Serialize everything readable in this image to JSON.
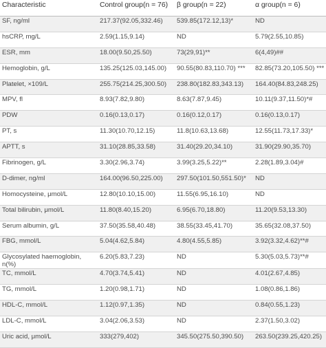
{
  "headers": [
    "Characteristic",
    "Control group(n = 76)",
    "β group(n = 22)",
    "α group(n = 6)"
  ],
  "rows": [
    [
      "SF, ng/ml",
      "217.37(92.05,332.46)",
      "539.85(172.12,13)*",
      "ND"
    ],
    [
      "hsCRP, mg/L",
      "2.59(1.15,9.14)",
      "ND",
      "5.79(2.55,10.85)"
    ],
    [
      "ESR, mm",
      "18.00(9.50,25.50)",
      "73(29,91)**",
      "6(4,49)##"
    ],
    [
      "Hemoglobin, g/L",
      "135.25(125.03,145.00)",
      "90.55(80.83,110.70) ***",
      "82.85(73.20,105.50) ***"
    ],
    [
      "Platelet, ×109/L",
      "255.75(214.25,300.50)",
      "238.80(182.83,343.13)",
      "164.40(84.83,248.25)"
    ],
    [
      "MPV, fl",
      "8.93(7.82,9.80)",
      "8.63(7.87,9.45)",
      "10.11(9.37,11.50)*#"
    ],
    [
      "PDW",
      "0.16(0.13,0.17)",
      "0.16(0.12,0.17)",
      "0.16(0.13,0.17)"
    ],
    [
      "PT, s",
      "11.30(10.70,12.15)",
      "11.8(10.63,13.68)",
      "12.55(11.73,17.33)*"
    ],
    [
      "APTT, s",
      "31.10(28.85,33.58)",
      "31.40(29.20,34.10)",
      "31.90(29.90,35.70)"
    ],
    [
      "Fibrinogen, g/L",
      "3.30(2.96,3.74)",
      "3.99(3.25,5.22)**",
      "2.28(1.89,3.04)#"
    ],
    [
      "D-dimer, ng/ml",
      "164.00(96.50,225.00)",
      "297.50(101.50,551.50)*",
      "ND"
    ],
    [
      "Homocysteine, μmol/L",
      "12.80(10.10,15.00)",
      "11.55(6.95,16.10)",
      "ND"
    ],
    [
      "Total bilirubin, μmol/L",
      "11.80(8.40,15.20)",
      "6.95(6.70,18.80)",
      "11.20(9.53,13.30)"
    ],
    [
      "Serum albumin, g/L",
      "37.50(35.58,40.48)",
      "38.55(33.45,41.70)",
      "35.65(32.08,37.50)"
    ],
    [
      "FBG, mmol/L",
      "5.04(4.62,5.84)",
      "4.80(4.55,5.85)",
      "3.92(3.32,4.62)**#"
    ],
    [
      "Glycosylated haemoglobin, n(%)",
      "6.20(5.83,7.23)",
      "ND",
      "5.30(5.03,5.73)**#"
    ],
    [
      "TC, mmol/L",
      "4.70(3.74,5.41)",
      "ND",
      "4.01(2.67,4.85)"
    ],
    [
      "TG, mmol/L",
      "1.20(0.98,1.71)",
      "ND",
      "1.08(0.86,1.86)"
    ],
    [
      "HDL-C, mmol/L",
      "1.12(0.97,1.35)",
      "ND",
      "0.84(0.55,1.23)"
    ],
    [
      "LDL-C, mmol/L",
      "3.04(2.06,3.53)",
      "ND",
      "2.37(1.50,3.02)"
    ],
    [
      "Uric acid, μmol/L",
      "333(279,402)",
      "345.50(275.50,390.50)",
      "263.50(239.25,420.25)"
    ]
  ]
}
